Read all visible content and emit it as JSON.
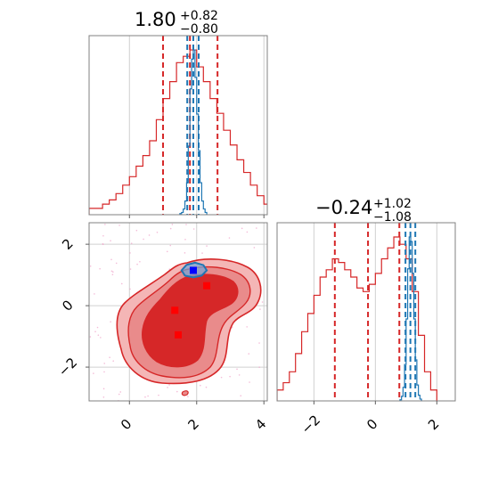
{
  "chart_data": [
    {
      "type": "histogram",
      "panel": "top-left",
      "title": {
        "median": "1.80",
        "plus": "+0.82",
        "minus": "−0.80"
      },
      "xlim": [
        -1.2,
        4.1
      ],
      "xticks": [
        0,
        2,
        4
      ],
      "series": [
        {
          "name": "",
          "color": "#d62728",
          "quantiles": [
            1.0,
            1.8,
            2.62
          ],
          "bins": [
            [
              -1.2,
              0.3
            ],
            [
              -1.0,
              0.3
            ],
            [
              -0.8,
              0.5
            ],
            [
              -0.6,
              0.7
            ],
            [
              -0.4,
              1.0
            ],
            [
              -0.2,
              1.4
            ],
            [
              0.0,
              1.8
            ],
            [
              0.2,
              2.3
            ],
            [
              0.4,
              2.8
            ],
            [
              0.6,
              3.5
            ],
            [
              0.8,
              4.5
            ],
            [
              1.0,
              5.5
            ],
            [
              1.2,
              6.3
            ],
            [
              1.4,
              7.2
            ],
            [
              1.6,
              7.5
            ],
            [
              1.8,
              7.8
            ],
            [
              2.0,
              7.0
            ],
            [
              2.2,
              6.3
            ],
            [
              2.4,
              5.5
            ],
            [
              2.6,
              4.8
            ],
            [
              2.8,
              4.0
            ],
            [
              3.0,
              3.3
            ],
            [
              3.2,
              2.6
            ],
            [
              3.4,
              2.0
            ],
            [
              3.6,
              1.4
            ],
            [
              3.8,
              0.9
            ],
            [
              4.0,
              0.5
            ]
          ]
        },
        {
          "name": "",
          "color": "#1f77b4",
          "quantiles": [
            1.72,
            1.9,
            2.06
          ],
          "bins": [
            [
              1.5,
              0.5
            ],
            [
              1.55,
              1.0
            ],
            [
              1.6,
              2.5
            ],
            [
              1.65,
              6
            ],
            [
              1.7,
              14
            ],
            [
              1.75,
              30
            ],
            [
              1.8,
              55
            ],
            [
              1.85,
              68
            ],
            [
              1.9,
              72
            ],
            [
              1.95,
              60
            ],
            [
              2.0,
              44
            ],
            [
              2.05,
              28
            ],
            [
              2.1,
              14
            ],
            [
              2.15,
              6
            ],
            [
              2.2,
              2.5
            ],
            [
              2.25,
              1
            ]
          ]
        }
      ]
    },
    {
      "type": "contour",
      "panel": "bottom-left",
      "xlim": [
        -1.2,
        4.1
      ],
      "ylim": [
        -3.1,
        2.7
      ],
      "xticks": [
        0,
        2,
        4
      ],
      "yticks": [
        -2,
        0,
        2
      ],
      "xticklabels": [
        "0",
        "2",
        "4"
      ],
      "yticklabels": [
        "−2",
        "0",
        "2"
      ],
      "colors": {
        "red_outer": "#f4b6b6",
        "red_mid": "#e98b8b",
        "red_inner": "#d62728",
        "blue": "#1f77b4",
        "blue_marker": "#0000ff",
        "red_marker": "#ff0000"
      },
      "markers_red": [
        [
          2.3,
          0.65
        ],
        [
          1.35,
          -0.15
        ],
        [
          1.45,
          -0.95
        ]
      ],
      "marker_blue": [
        1.9,
        1.15
      ],
      "blue_contour": [
        [
          1.55,
          1.15
        ],
        [
          1.65,
          0.98
        ],
        [
          1.9,
          0.92
        ],
        [
          2.15,
          0.98
        ],
        [
          2.3,
          1.15
        ],
        [
          2.2,
          1.32
        ],
        [
          1.95,
          1.4
        ],
        [
          1.7,
          1.33
        ]
      ]
    },
    {
      "type": "histogram",
      "panel": "bottom-right",
      "title": {
        "median": "−0.24",
        "plus": "+1.02",
        "minus": "−1.08"
      },
      "xlim": [
        -3.2,
        2.6
      ],
      "xticks": [
        -2,
        0,
        2
      ],
      "xticklabels": [
        "−2",
        "0",
        "2"
      ],
      "series": [
        {
          "name": "",
          "color": "#d62728",
          "quantiles": [
            -1.32,
            -0.24,
            0.78
          ],
          "bins": [
            [
              -3.2,
              0.3
            ],
            [
              -3.0,
              0.5
            ],
            [
              -2.8,
              0.8
            ],
            [
              -2.6,
              1.3
            ],
            [
              -2.4,
              1.9
            ],
            [
              -2.2,
              2.4
            ],
            [
              -2.0,
              2.9
            ],
            [
              -1.8,
              3.4
            ],
            [
              -1.6,
              3.6
            ],
            [
              -1.4,
              3.9
            ],
            [
              -1.2,
              3.8
            ],
            [
              -1.0,
              3.6
            ],
            [
              -0.8,
              3.4
            ],
            [
              -0.6,
              3.1
            ],
            [
              -0.4,
              3.0
            ],
            [
              -0.2,
              3.2
            ],
            [
              0.0,
              3.5
            ],
            [
              0.2,
              3.9
            ],
            [
              0.4,
              4.2
            ],
            [
              0.6,
              4.5
            ],
            [
              0.8,
              4.3
            ],
            [
              1.0,
              3.9
            ],
            [
              1.2,
              3.0
            ],
            [
              1.4,
              1.8
            ],
            [
              1.6,
              0.8
            ],
            [
              1.8,
              0.3
            ]
          ]
        },
        {
          "name": "",
          "color": "#1f77b4",
          "quantiles": [
            0.98,
            1.14,
            1.3
          ],
          "bins": [
            [
              0.8,
              0.5
            ],
            [
              0.85,
              2
            ],
            [
              0.9,
              6
            ],
            [
              0.95,
              16
            ],
            [
              1.0,
              36
            ],
            [
              1.05,
              58
            ],
            [
              1.1,
              72
            ],
            [
              1.15,
              70
            ],
            [
              1.2,
              56
            ],
            [
              1.25,
              36
            ],
            [
              1.3,
              18
            ],
            [
              1.35,
              7
            ],
            [
              1.4,
              2.5
            ],
            [
              1.45,
              0.8
            ]
          ]
        }
      ]
    }
  ]
}
